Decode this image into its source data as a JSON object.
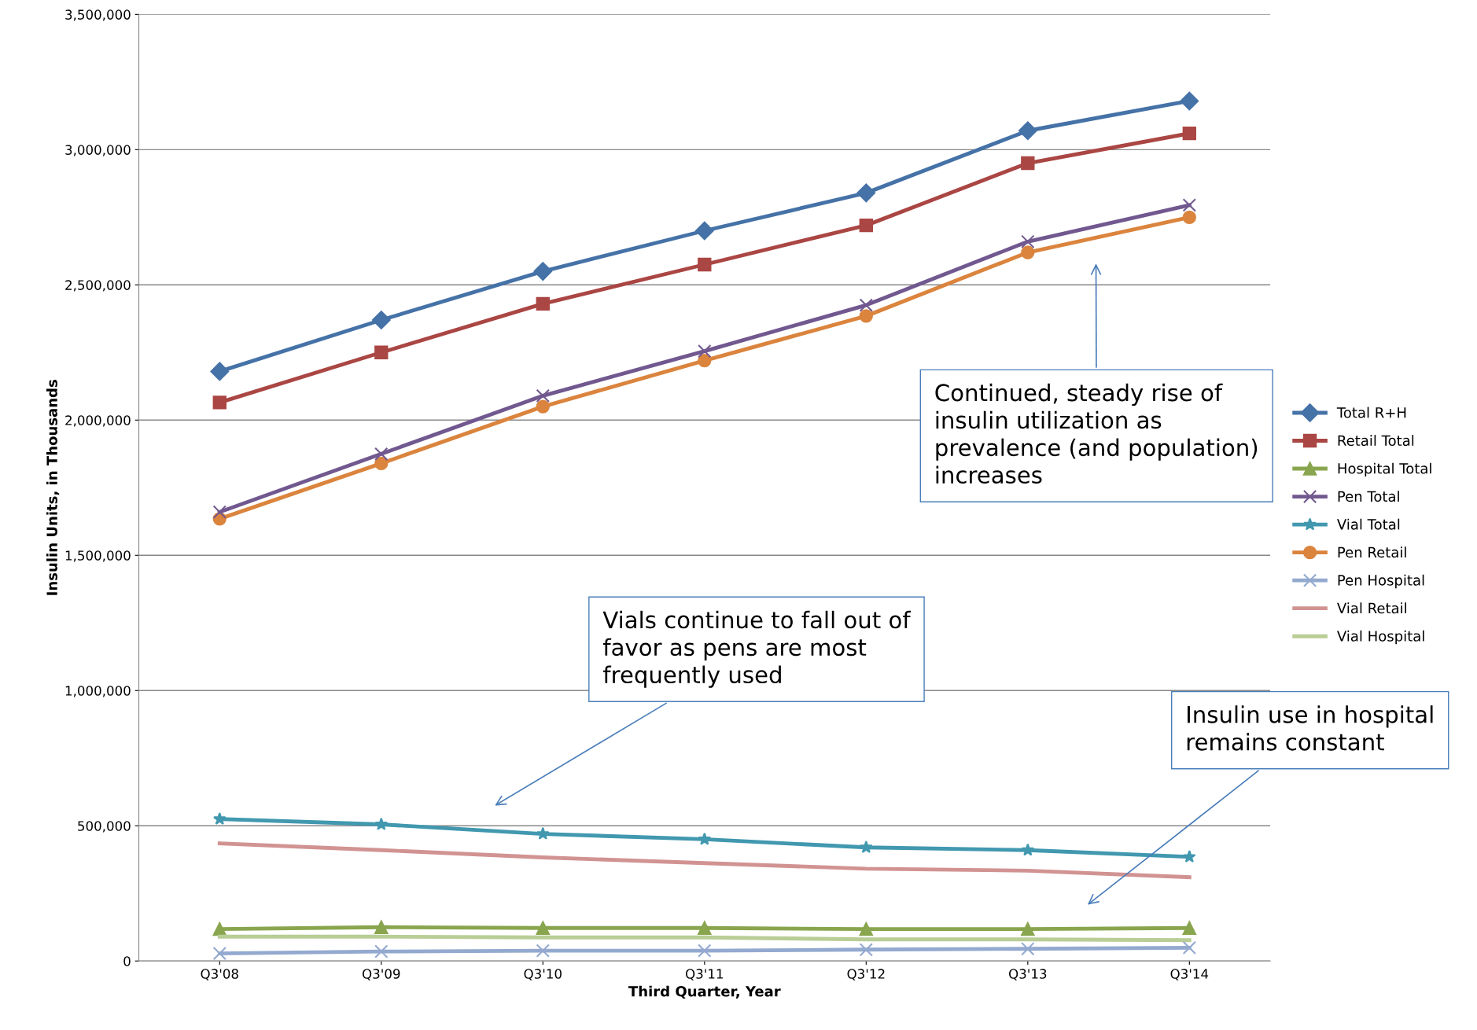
{
  "chart_data": {
    "type": "line",
    "xlabel": "Third Quarter, Year",
    "ylabel": "Insulin Units, in Thousands",
    "categories": [
      "Q3'08",
      "Q3'09",
      "Q3'10",
      "Q3'11",
      "Q3'12",
      "Q3'13",
      "Q3'14"
    ],
    "series": [
      {
        "name": "Total R+H",
        "color": "#4572a7",
        "marker": "diamond",
        "values": [
          2180000,
          2370000,
          2550000,
          2700000,
          2840000,
          3070000,
          3180000
        ]
      },
      {
        "name": "Retail Total",
        "color": "#aa4643",
        "marker": "square",
        "values": [
          2065000,
          2250000,
          2430000,
          2575000,
          2720000,
          2950000,
          3060000
        ]
      },
      {
        "name": "Hospital Total",
        "color": "#89a54e",
        "marker": "triangle",
        "values": [
          118000,
          125000,
          122000,
          122000,
          118000,
          118000,
          122000
        ]
      },
      {
        "name": "Pen Total",
        "color": "#71588f",
        "marker": "cross",
        "values": [
          1660000,
          1875000,
          2090000,
          2255000,
          2425000,
          2660000,
          2795000
        ]
      },
      {
        "name": "Vial Total",
        "color": "#4198af",
        "marker": "star",
        "values": [
          525000,
          505000,
          470000,
          450000,
          420000,
          410000,
          385000
        ]
      },
      {
        "name": "Pen Retail",
        "color": "#db843d",
        "marker": "circle",
        "values": [
          1635000,
          1840000,
          2050000,
          2220000,
          2385000,
          2620000,
          2750000
        ]
      },
      {
        "name": "Pen Hospital",
        "color": "#93a9cf",
        "marker": "cross",
        "values": [
          28000,
          35000,
          38000,
          38000,
          42000,
          45000,
          49000
        ]
      },
      {
        "name": "Vial Retail",
        "color": "#d19392",
        "marker": "none",
        "values": [
          435000,
          410000,
          383000,
          362000,
          341000,
          334000,
          310000
        ]
      },
      {
        "name": "Vial Hospital",
        "color": "#b9cd96",
        "marker": "none",
        "values": [
          90000,
          90000,
          87000,
          87000,
          80000,
          80000,
          77000
        ]
      }
    ],
    "ylim": [
      0,
      3500000
    ],
    "yticks": [
      0,
      {
        "value": 500000,
        "label": "500,000"
      },
      {
        "value": 1000000,
        "label": "1,000,000"
      },
      {
        "value": 1500000,
        "label": "1,500,000"
      },
      {
        "value": 2000000,
        "label": "2,000,000"
      },
      {
        "value": 2500000,
        "label": "2,500,000"
      },
      {
        "value": 3000000,
        "label": "3,000,000"
      },
      {
        "value": 3500000,
        "label": "3,500,000"
      }
    ],
    "grid": "y",
    "legend": "right",
    "line_style": "solid",
    "annotations": [
      "Continued, steady rise of insulin utilization as prevalence (and population) increases",
      "Vials continue to fall out of favor as pens are most frequently used",
      "Insulin use in hospital remains constant"
    ]
  }
}
